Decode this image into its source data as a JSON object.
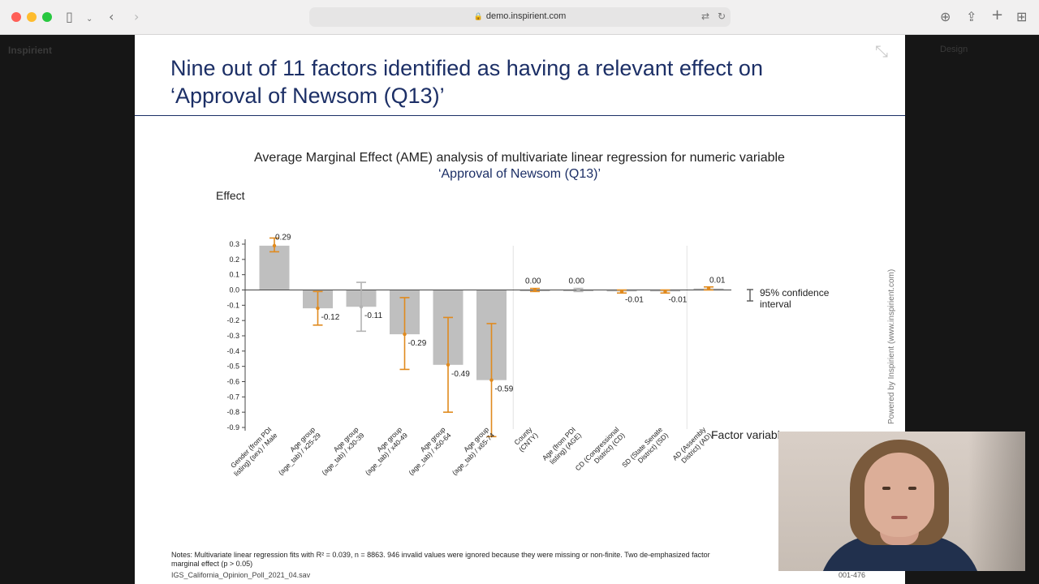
{
  "browser": {
    "url": "demo.inspirient.com",
    "icons": {
      "sidebar": "sidebar-icon",
      "back": "chevron-left-icon",
      "forward": "chevron-right-icon",
      "translate": "translate-icon",
      "reload": "reload-icon",
      "download": "download-icon",
      "share": "share-icon",
      "new_tab": "plus-icon",
      "tabs": "tab-grid-icon"
    }
  },
  "app": {
    "logo": "Inspirient",
    "design_label": "Design"
  },
  "slide": {
    "title_line1": "Nine out of 11 factors identified as having a relevant effect on",
    "title_line2": "‘Approval of Newsom (Q13)’",
    "chart_title": "Average Marginal Effect (AME) analysis of multivariate linear regression for numeric variable",
    "chart_subtitle": "‘Approval of Newsom (Q13)’",
    "notes": "Notes: Multivariate linear regression fits with R² = 0.039, n = 8863.   946 invalid values were ignored because they were missing or non-finite.   Two  de-emphasized factor",
    "notes_line2": "marginal effect (p > 0.05)",
    "source": "IGS_California_Opinion_Poll_2021_04.sav",
    "page_number": "001-476",
    "powered_by": "Powered by Inspirient (www.inspirient.com)"
  },
  "chart_data": {
    "type": "bar",
    "ylabel": "Effect",
    "xlabel": "Factor variabl",
    "ylim": [
      -0.95,
      0.35
    ],
    "yticks": [
      "0.3",
      "0.2",
      "0.1",
      "0.0",
      "-0.1",
      "-0.2",
      "-0.3",
      "-0.4",
      "-0.5",
      "-0.6",
      "-0.7",
      "-0.8",
      "-0.9"
    ],
    "legend": "95% confidence interval",
    "categories": [
      "Gender (from PDI listing) (sex) / Male",
      "Age group (age_tab) / x25-29",
      "Age group (age_tab) / x30-39",
      "Age group (age_tab) / x40-49",
      "Age group (age_tab) / x50-64",
      "Age group (age_tab) / x65-74",
      "County (CNTY)",
      "Age (from PDI listing) (AGE)",
      "CD (Congressional District) (CD)",
      "SD (State Senate District) (SD)",
      "AD (Assembly District) (AD)"
    ],
    "values": [
      0.29,
      -0.12,
      -0.11,
      -0.29,
      -0.49,
      -0.59,
      0.0,
      0.0,
      -0.01,
      -0.01,
      0.01
    ],
    "value_labels": [
      "0.29",
      "-0.12",
      "-0.11",
      "-0.29",
      "-0.49",
      "-0.59",
      "0.00",
      "0.00",
      "-0.01",
      "-0.01",
      "0.01"
    ],
    "ci_low": [
      0.25,
      -0.23,
      -0.27,
      -0.52,
      -0.8,
      -0.96,
      -0.01,
      -0.01,
      -0.02,
      -0.02,
      0.0
    ],
    "ci_high": [
      0.34,
      -0.01,
      0.05,
      -0.05,
      -0.18,
      -0.22,
      0.01,
      0.01,
      0.0,
      0.0,
      0.02
    ],
    "relevant": [
      true,
      true,
      false,
      true,
      true,
      true,
      true,
      false,
      true,
      true,
      true
    ],
    "colors": {
      "bar": "#bfbfbf",
      "ci_relevant": "#e08a1e",
      "ci_irrelevant": "#b3b3b3",
      "axis": "#444444"
    }
  }
}
